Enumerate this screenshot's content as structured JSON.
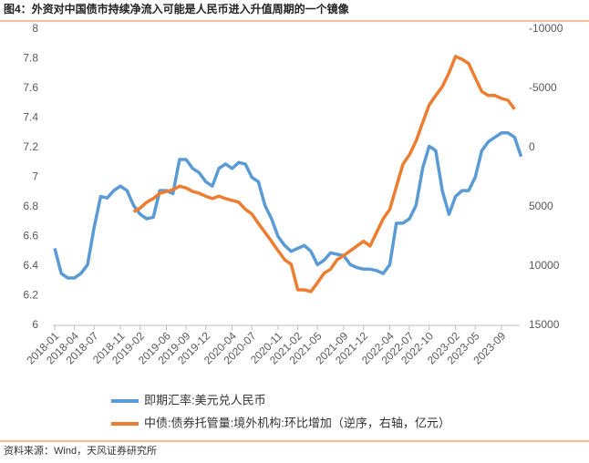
{
  "chart_data": {
    "type": "line",
    "title": "图4：外资对中国债市持续净流入可能是人民币进入升值周期的一个镜像",
    "source": "资料来源：Wind，天风证券研究所",
    "x": [
      "2018-01",
      "2018-02",
      "2018-03",
      "2018-04",
      "2018-05",
      "2018-06",
      "2018-07",
      "2018-08",
      "2018-09",
      "2018-10",
      "2018-11",
      "2018-12",
      "2019-01",
      "2019-02",
      "2019-03",
      "2019-04",
      "2019-05",
      "2019-06",
      "2019-07",
      "2019-08",
      "2019-09",
      "2019-10",
      "2019-11",
      "2019-12",
      "2020-01",
      "2020-02",
      "2020-03",
      "2020-04",
      "2020-05",
      "2020-06",
      "2020-07",
      "2020-08",
      "2020-09",
      "2020-10",
      "2020-11",
      "2020-12",
      "2021-01",
      "2021-02",
      "2021-03",
      "2021-04",
      "2021-05",
      "2021-06",
      "2021-07",
      "2021-08",
      "2021-09",
      "2021-10",
      "2021-11",
      "2021-12",
      "2022-01",
      "2022-02",
      "2022-03",
      "2022-04",
      "2022-05",
      "2022-06",
      "2022-07",
      "2022-08",
      "2022-09",
      "2022-10",
      "2022-11",
      "2022-12",
      "2023-01",
      "2023-02",
      "2023-03",
      "2023-04",
      "2023-05",
      "2023-06",
      "2023-07",
      "2023-08",
      "2023-09",
      "2023-10",
      "2023-11",
      "2023-12"
    ],
    "xticks": [
      "2018-01",
      "2018-04",
      "2018-07",
      "2018-11",
      "2019-02",
      "2019-06",
      "2019-09",
      "2019-12",
      "2020-04",
      "2020-07",
      "2020-11",
      "2021-02",
      "2021-05",
      "2021-09",
      "2021-12",
      "2022-04",
      "2022-07",
      "2022-10",
      "2023-02",
      "2023-05",
      "2023-09"
    ],
    "series": [
      {
        "name": "即期汇率:美元兑人民币",
        "color": "#5b9bd5",
        "axis": "y",
        "values": [
          6.52,
          6.35,
          6.32,
          6.32,
          6.35,
          6.41,
          6.66,
          6.87,
          6.86,
          6.91,
          6.94,
          6.91,
          6.81,
          6.75,
          6.72,
          6.73,
          6.91,
          6.91,
          6.89,
          7.12,
          7.12,
          7.06,
          7.03,
          6.97,
          6.94,
          7.06,
          7.09,
          7.06,
          7.1,
          7.09,
          7.0,
          6.97,
          6.81,
          6.72,
          6.6,
          6.54,
          6.5,
          6.52,
          6.54,
          6.5,
          6.41,
          6.44,
          6.49,
          6.48,
          6.47,
          6.41,
          6.39,
          6.38,
          6.38,
          6.37,
          6.35,
          6.41,
          6.69,
          6.69,
          6.72,
          6.81,
          7.06,
          7.21,
          7.18,
          6.91,
          6.75,
          6.87,
          6.91,
          6.91,
          7.0,
          7.18,
          7.24,
          7.27,
          7.3,
          7.3,
          7.27,
          7.14
        ]
      },
      {
        "name": "中债:债券托管量:境外机构:环比增加（逆序，右轴，亿元）",
        "color": "#ed7d31",
        "axis": "y2",
        "values": [
          null,
          null,
          null,
          null,
          null,
          null,
          null,
          null,
          null,
          null,
          null,
          null,
          5400,
          5100,
          4600,
          4300,
          3850,
          3700,
          3550,
          3250,
          3400,
          3700,
          3850,
          4100,
          4300,
          4100,
          4300,
          4450,
          4600,
          5200,
          5600,
          6400,
          7150,
          7900,
          8700,
          9450,
          9850,
          12000,
          12000,
          12150,
          11400,
          10600,
          10250,
          9450,
          9100,
          8700,
          8300,
          7900,
          8300,
          7150,
          6000,
          5200,
          3300,
          1400,
          600,
          -550,
          -2100,
          -3600,
          -4400,
          -5150,
          -6300,
          -7700,
          -7450,
          -7100,
          -5900,
          -4750,
          -4400,
          -4400,
          -4150,
          -4000,
          -3250,
          null
        ]
      }
    ],
    "ylim": [
      6,
      8
    ],
    "yticks": [
      6,
      6.2,
      6.4,
      6.6,
      6.8,
      7,
      7.2,
      7.4,
      7.6,
      7.8,
      8
    ],
    "y2lim": [
      15000,
      -10000
    ],
    "y2ticks": [
      15000,
      10000,
      5000,
      0,
      -5000,
      -10000
    ],
    "grid": false
  }
}
